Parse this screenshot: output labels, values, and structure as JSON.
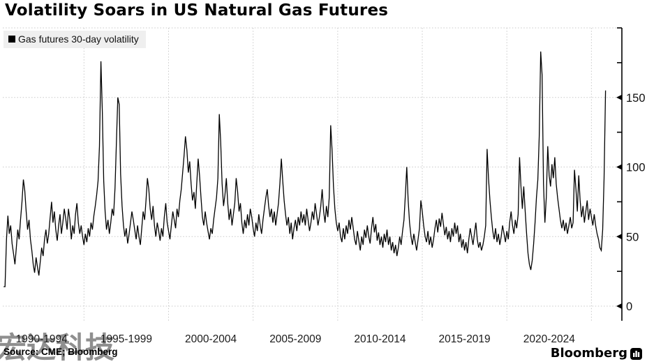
{
  "chart_data": {
    "type": "line",
    "title": "Volatility Soars in US Natural Gas Futures",
    "legend_label": "Gas futures 30-day volatility",
    "xlabel": "",
    "ylabel": "",
    "grid": "dotted, both axes",
    "legend_position": "top-left",
    "axis_side": "right",
    "line_color": "#000000",
    "grid_color": "#c8c8c8",
    "ylim": [
      -10,
      200
    ],
    "yticks_major": [
      0,
      50,
      100,
      150
    ],
    "yticks_minor": [
      25,
      75,
      125,
      175,
      200
    ],
    "y_gridlines": [
      0,
      50,
      100,
      150,
      200
    ],
    "xlim_years": [
      1990.2,
      2026.8
    ],
    "x_gridline_years": [
      1995,
      2000,
      2005,
      2010,
      2015,
      2020,
      2025
    ],
    "x_tick_labels": [
      {
        "label": "1990-1994",
        "center_year": 1992.5
      },
      {
        "label": "1995-1999",
        "center_year": 1997.5
      },
      {
        "label": "2000-2004",
        "center_year": 2002.5
      },
      {
        "label": "2005-2009",
        "center_year": 2007.5
      },
      {
        "label": "2010-2014",
        "center_year": 2012.5
      },
      {
        "label": "2015-2019",
        "center_year": 2017.5
      },
      {
        "label": "2020-2024",
        "center_year": 2022.5
      }
    ],
    "series": [
      {
        "name": "Gas futures 30-day volatility",
        "color": "#000000",
        "x_start_year": 1990.25,
        "x_step_years": 0.083333,
        "values": [
          14,
          14,
          48,
          65,
          52,
          58,
          45,
          38,
          30,
          42,
          55,
          48,
          62,
          75,
          91,
          83,
          68,
          55,
          62,
          48,
          40,
          30,
          24,
          35,
          28,
          22,
          32,
          42,
          36,
          48,
          55,
          45,
          52,
          64,
          75,
          60,
          68,
          55,
          47,
          58,
          66,
          52,
          60,
          70,
          63,
          55,
          70,
          62,
          48,
          58,
          52,
          66,
          74,
          60,
          52,
          58,
          50,
          44,
          52,
          46,
          56,
          50,
          60,
          55,
          65,
          72,
          80,
          90,
          115,
          176,
          140,
          90,
          68,
          55,
          62,
          52,
          60,
          70,
          65,
          85,
          118,
          150,
          145,
          95,
          72,
          58,
          50,
          56,
          45,
          52,
          60,
          68,
          62,
          55,
          48,
          58,
          50,
          44,
          56,
          68,
          62,
          76,
          92,
          84,
          70,
          62,
          72,
          58,
          50,
          60,
          54,
          47,
          56,
          50,
          64,
          74,
          60,
          54,
          48,
          58,
          68,
          62,
          56,
          70,
          64,
          76,
          84,
          96,
          108,
          122,
          112,
          96,
          104,
          88,
          76,
          82,
          70,
          88,
          106,
          94,
          78,
          64,
          58,
          68,
          60,
          54,
          48,
          56,
          52,
          62,
          70,
          78,
          92,
          138,
          118,
          88,
          72,
          80,
          92,
          74,
          62,
          70,
          58,
          66,
          74,
          92,
          82,
          68,
          74,
          60,
          52,
          62,
          56,
          66,
          58,
          70,
          64,
          56,
          50,
          60,
          54,
          66,
          58,
          52,
          62,
          70,
          78,
          84,
          72,
          64,
          70,
          60,
          68,
          58,
          66,
          74,
          88,
          106,
          90,
          76,
          66,
          58,
          64,
          52,
          60,
          48,
          56,
          62,
          54,
          64,
          58,
          68,
          60,
          66,
          58,
          70,
          62,
          54,
          60,
          68,
          62,
          74,
          66,
          58,
          64,
          72,
          84,
          68,
          60,
          72,
          64,
          78,
          130,
          112,
          86,
          70,
          60,
          54,
          60,
          50,
          46,
          56,
          48,
          58,
          52,
          62,
          55,
          64,
          56,
          48,
          44,
          54,
          47,
          40,
          50,
          44,
          55,
          49,
          58,
          50,
          45,
          56,
          64,
          53,
          59,
          47,
          53,
          44,
          50,
          42,
          52,
          46,
          55,
          44,
          50,
          40,
          46,
          38,
          44,
          36,
          42,
          50,
          44,
          54,
          62,
          80,
          100,
          76,
          60,
          50,
          44,
          52,
          46,
          40,
          48,
          56,
          76,
          68,
          58,
          50,
          46,
          54,
          44,
          50,
          42,
          48,
          56,
          62,
          53,
          63,
          57,
          67,
          59,
          51,
          57,
          48,
          54,
          46,
          56,
          50,
          60,
          52,
          58,
          46,
          52,
          42,
          48,
          40,
          46,
          38,
          48,
          56,
          50,
          44,
          52,
          60,
          48,
          42,
          46,
          40,
          44,
          50,
          58,
          113,
          92,
          76,
          64,
          54,
          48,
          56,
          46,
          52,
          44,
          50,
          58,
          52,
          46,
          54,
          48,
          60,
          68,
          58,
          52,
          62,
          56,
          66,
          107,
          86,
          70,
          86,
          68,
          52,
          38,
          30,
          26,
          33,
          45,
          60,
          78,
          91,
          122,
          183,
          166,
          88,
          60,
          78,
          115,
          94,
          86,
          102,
          92,
          107,
          88,
          78,
          70,
          62,
          56,
          62,
          54,
          60,
          52,
          58,
          64,
          56,
          60,
          98,
          84,
          68,
          94,
          76,
          64,
          72,
          60,
          68,
          76,
          62,
          70,
          64,
          58,
          66,
          58,
          52,
          48,
          42,
          40,
          55,
          92,
          155
        ]
      }
    ]
  },
  "footer": {
    "source": "Source: CME; Bloomberg",
    "brand": "Bloomberg",
    "watermark": "宏达科技"
  }
}
